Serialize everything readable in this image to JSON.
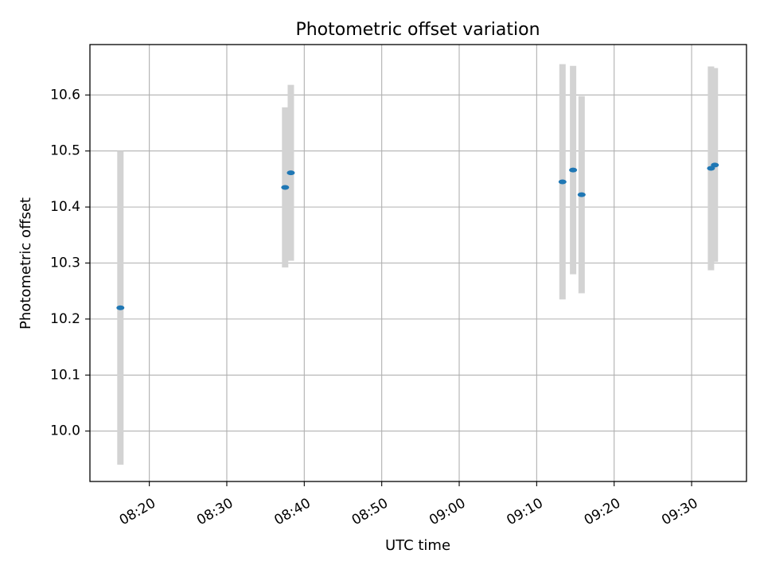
{
  "chart_data": {
    "type": "scatter",
    "title": "Photometric offset variation",
    "xlabel": "UTC time",
    "ylabel": "Photometric offset",
    "grid": true,
    "legend": "none",
    "xlim": [
      "08:12:20",
      "09:37:05"
    ],
    "ylim": [
      9.91,
      10.69
    ],
    "x_ticks": [
      "08:20",
      "08:30",
      "08:40",
      "08:50",
      "09:00",
      "09:10",
      "09:20",
      "09:30"
    ],
    "y_ticks": [
      "10.0",
      "10.1",
      "10.2",
      "10.3",
      "10.4",
      "10.5",
      "10.6"
    ],
    "marker_color": "#1f77b4",
    "errorbar_color": "#d3d3d3",
    "grid_color": "#b0b0b0",
    "points": [
      {
        "time": "08:16:16",
        "value": 10.22,
        "error": 0.28
      },
      {
        "time": "08:37:32",
        "value": 10.435,
        "error": 0.143
      },
      {
        "time": "08:38:16",
        "value": 10.461,
        "error": 0.157
      },
      {
        "time": "09:13:20",
        "value": 10.445,
        "error": 0.21
      },
      {
        "time": "09:14:42",
        "value": 10.466,
        "error": 0.186
      },
      {
        "time": "09:15:48",
        "value": 10.422,
        "error": 0.176
      },
      {
        "time": "09:32:30",
        "value": 10.469,
        "error": 0.182
      },
      {
        "time": "09:33:00",
        "value": 10.475,
        "error": 0.173
      }
    ]
  }
}
